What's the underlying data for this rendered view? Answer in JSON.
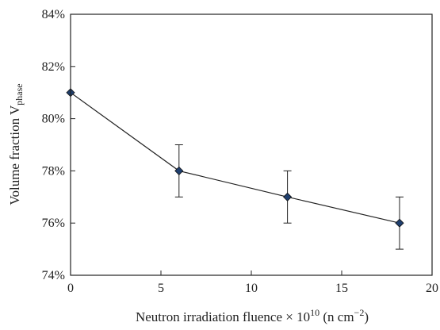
{
  "chart_data": {
    "type": "scatter",
    "title": "",
    "xlabel": {
      "text": "Neutron irradiation fluence × 10",
      "superscript": "10",
      "unit_open": " (n cm",
      "unit_superscript": "−2",
      "unit_close": ")"
    },
    "ylabel": {
      "text": "Volume fraction V",
      "subscript": "phase"
    },
    "xlim": [
      0,
      20
    ],
    "ylim": [
      74,
      84
    ],
    "x_ticks": [
      0,
      5,
      10,
      15,
      20
    ],
    "x_tick_labels": [
      "0",
      "5",
      "10",
      "15",
      "20"
    ],
    "y_ticks": [
      74,
      76,
      78,
      80,
      82,
      84
    ],
    "y_tick_labels": [
      "74%",
      "76%",
      "78%",
      "80%",
      "82%",
      "84%"
    ],
    "grid": false,
    "legend": "none",
    "connected_line": true,
    "marker": "diamond",
    "marker_color": "#1f3f6e",
    "line_color": "#222222",
    "series": [
      {
        "x": [
          0,
          6,
          12,
          18.2
        ],
        "y": [
          81,
          78,
          77,
          76
        ],
        "error": [
          0,
          1,
          1,
          1
        ]
      }
    ]
  }
}
